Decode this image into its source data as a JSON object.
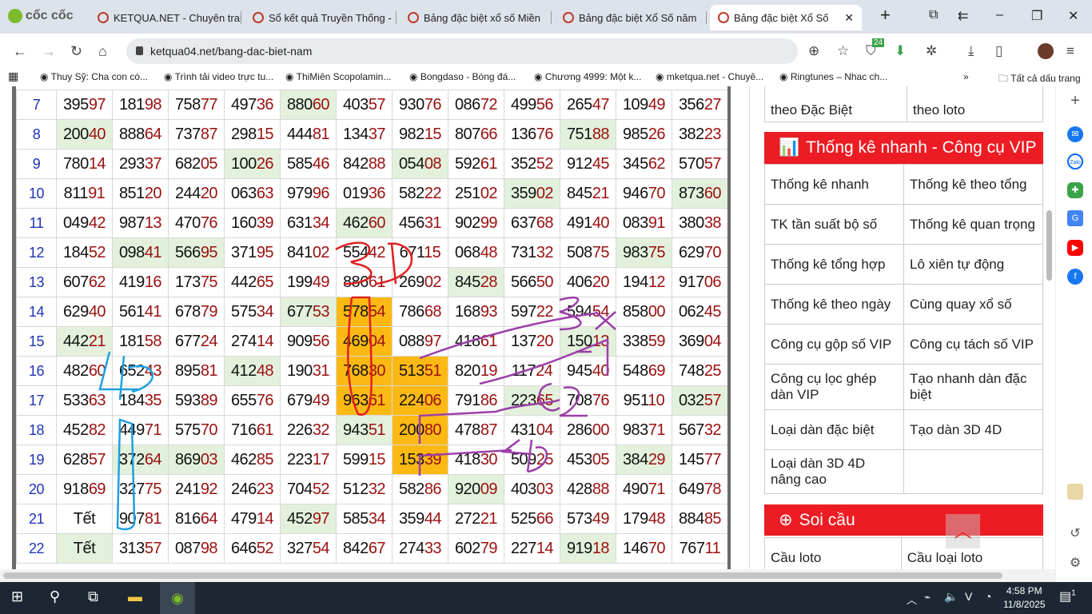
{
  "browser": {
    "brand": "cốc cốc",
    "tabs": [
      {
        "title": "KETQUA.NET - Chuyên trang",
        "active": false
      },
      {
        "title": "Sổ kết quả Truyền Thống -",
        "active": false
      },
      {
        "title": "Bảng đặc biệt xổ số Miền",
        "active": false
      },
      {
        "title": "Bảng đặc biệt Xổ Số năm",
        "active": false
      },
      {
        "title": "Bảng đặc biệt Xổ Số",
        "active": true
      }
    ],
    "url": "ketqua04.net/bang-dac-biet-nam",
    "extension_badge": "24",
    "bookmarks": [
      "Thuy Sỹ: Cha con có...",
      "Trình tải video trực tu...",
      "ThiMiên Scopolamin...",
      "Bongdaso - Bóng đá...",
      "Chương 4999: Một k...",
      "mketqua.net - Chuyê...",
      "Ringtunes – Nhac ch..."
    ],
    "all_bookmarks": "Tất cả dấu trang"
  },
  "colors": {
    "green": "#e3f1dc",
    "orange": "#fdb913",
    "red_header": "#ed1c24",
    "index": "#1f33b8",
    "tail": "#9a1010"
  },
  "table": {
    "rows": [
      {
        "n": "7",
        "cells": [
          "39597",
          "18198",
          "75877",
          "49736",
          "88060",
          "40357",
          "93076",
          "08672",
          "49956",
          "26547",
          "10949",
          "35627"
        ],
        "hl": [
          "",
          "",
          "",
          "",
          "g",
          "",
          "",
          "",
          "",
          "",
          "",
          ""
        ]
      },
      {
        "n": "8",
        "cells": [
          "20040",
          "88864",
          "73787",
          "29815",
          "44481",
          "13437",
          "98215",
          "80766",
          "13676",
          "75188",
          "98526",
          "38223"
        ],
        "hl": [
          "g",
          "",
          "",
          "",
          "",
          "",
          "",
          "",
          "",
          "g",
          "",
          ""
        ]
      },
      {
        "n": "9",
        "cells": [
          "78014",
          "29337",
          "68205",
          "10026",
          "58546",
          "84288",
          "05408",
          "59261",
          "35252",
          "91245",
          "34562",
          "57057"
        ],
        "hl": [
          "",
          "",
          "",
          "g",
          "",
          "",
          "g",
          "",
          "",
          "",
          "",
          ""
        ]
      },
      {
        "n": "10",
        "cells": [
          "81191",
          "85120",
          "24420",
          "06363",
          "97996",
          "01936",
          "58222",
          "25102",
          "35902",
          "84521",
          "94670",
          "87360"
        ],
        "hl": [
          "",
          "",
          "",
          "",
          "",
          "",
          "",
          "",
          "g",
          "",
          "",
          "g"
        ]
      },
      {
        "n": "11",
        "cells": [
          "04942",
          "98713",
          "47076",
          "16039",
          "63134",
          "46260",
          "45631",
          "90299",
          "63768",
          "49140",
          "08391",
          "38038"
        ],
        "hl": [
          "",
          "",
          "",
          "",
          "",
          "g",
          "",
          "",
          "",
          "",
          "",
          ""
        ]
      },
      {
        "n": "12",
        "cells": [
          "18452",
          "09841",
          "56695",
          "37195",
          "84102",
          "55442",
          "67115",
          "06848",
          "73132",
          "50875",
          "98375",
          "62970"
        ],
        "hl": [
          "",
          "g",
          "g",
          "",
          "",
          "",
          "",
          "",
          "",
          "",
          "g",
          ""
        ]
      },
      {
        "n": "13",
        "cells": [
          "60762",
          "41916",
          "17375",
          "44265",
          "19949",
          "88661",
          "26902",
          "84528",
          "56650",
          "40620",
          "19412",
          "91706"
        ],
        "hl": [
          "",
          "",
          "",
          "",
          "",
          "",
          "",
          "g",
          "",
          "",
          "",
          ""
        ]
      },
      {
        "n": "14",
        "cells": [
          "62940",
          "56141",
          "67879",
          "57534",
          "67753",
          "57854",
          "78668",
          "16893",
          "59722",
          "59454",
          "85800",
          "06245"
        ],
        "hl": [
          "",
          "",
          "",
          "",
          "g",
          "o",
          "",
          "",
          "",
          "",
          "",
          ""
        ]
      },
      {
        "n": "15",
        "cells": [
          "44221",
          "18158",
          "67724",
          "27414",
          "90956",
          "46904",
          "08897",
          "41861",
          "13720",
          "15013",
          "33859",
          "36904"
        ],
        "hl": [
          "g",
          "",
          "",
          "",
          "",
          "o",
          "",
          "",
          "",
          "g",
          "",
          ""
        ]
      },
      {
        "n": "16",
        "cells": [
          "48260",
          "65243",
          "89581",
          "41248",
          "19031",
          "76830",
          "51351",
          "82019",
          "11724",
          "94540",
          "54869",
          "74825"
        ],
        "hl": [
          "",
          "",
          "",
          "g",
          "",
          "o",
          "o",
          "",
          "",
          "",
          "",
          ""
        ]
      },
      {
        "n": "17",
        "cells": [
          "53363",
          "18435",
          "59389",
          "65576",
          "67949",
          "96361",
          "22406",
          "79186",
          "22365",
          "70876",
          "95110",
          "03257"
        ],
        "hl": [
          "",
          "",
          "",
          "",
          "",
          "o",
          "o",
          "",
          "g",
          "",
          "",
          "g"
        ]
      },
      {
        "n": "18",
        "cells": [
          "45282",
          "44971",
          "57570",
          "71661",
          "22632",
          "94351",
          "20080",
          "47887",
          "43104",
          "28600",
          "98371",
          "56732"
        ],
        "hl": [
          "",
          "",
          "",
          "",
          "",
          "g",
          "o",
          "",
          "",
          "",
          "",
          ""
        ]
      },
      {
        "n": "19",
        "cells": [
          "62857",
          "37264",
          "86903",
          "46285",
          "22317",
          "59915",
          "15339",
          "41830",
          "50925",
          "45305",
          "38429",
          "14577"
        ],
        "hl": [
          "",
          "g",
          "g",
          "",
          "",
          "",
          "o",
          "",
          "",
          "",
          "g",
          ""
        ]
      },
      {
        "n": "20",
        "cells": [
          "91869",
          "32775",
          "24192",
          "24623",
          "70452",
          "51232",
          "58286",
          "92009",
          "40303",
          "42888",
          "49071",
          "64978"
        ],
        "hl": [
          "",
          "",
          "",
          "",
          "",
          "",
          "",
          "g",
          "",
          "",
          "",
          ""
        ]
      },
      {
        "n": "21",
        "cells": [
          "Tết",
          "90781",
          "81664",
          "47914",
          "45297",
          "58534",
          "35944",
          "27221",
          "52566",
          "57349",
          "17948",
          "88485"
        ],
        "hl": [
          "",
          "",
          "",
          "",
          "g",
          "",
          "",
          "",
          "",
          "",
          "",
          ""
        ]
      },
      {
        "n": "22",
        "cells": [
          "Tết",
          "31357",
          "08798",
          "64652",
          "32754",
          "84267",
          "27433",
          "60279",
          "22714",
          "91918",
          "14670",
          "76711"
        ],
        "hl": [
          "g",
          "",
          "",
          "",
          "",
          "",
          "",
          "",
          "",
          "g",
          "",
          ""
        ]
      }
    ]
  },
  "sidebar": {
    "top_row": [
      "theo Đặc Biệt",
      "theo loto"
    ],
    "vip_header": "Thống kê nhanh - Công cụ VIP",
    "vip_rows": [
      [
        "Thống kê nhanh",
        "Thống kê theo tổng"
      ],
      [
        "TK tần suất bộ số",
        "Thống kê quan trọng"
      ],
      [
        "Thống kê tổng hợp",
        "Lô xiên tự động"
      ],
      [
        "Thống kê theo ngày",
        "Cùng quay xổ số"
      ],
      [
        "Công cụ gộp số VIP",
        "Công cụ tách số VIP"
      ],
      [
        "Công cụ lọc ghép dàn VIP",
        "Tạo nhanh dàn đặc biệt"
      ],
      [
        "Loại dàn đặc biệt",
        "Tạo dàn 3D 4D"
      ],
      [
        "Loại dàn 3D 4D nâng cao",
        ""
      ]
    ],
    "soi_header": "Soi cầu",
    "soi_rows": [
      [
        "Cầu loto",
        "Cầu loại loto"
      ]
    ]
  },
  "taskbar": {
    "time": "4:58 PM",
    "date": "11/8/2025",
    "notifications": "1"
  }
}
